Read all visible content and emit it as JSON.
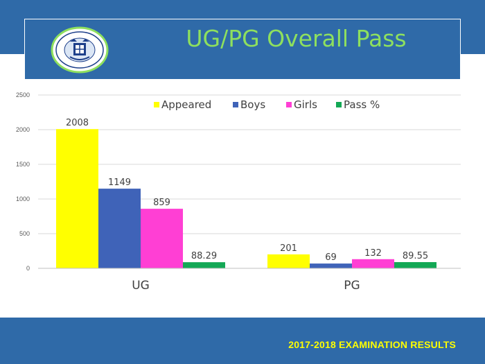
{
  "slide": {
    "title": "UG/PG Overall Pass",
    "footer": "2017-2018 EXAMINATION RESULTS",
    "logo_icon": "college-seal-emblem"
  },
  "colors": {
    "band": "#2f6aa8",
    "title": "#8ee05e",
    "footer": "#ffff00",
    "appeared": "#ffff00",
    "boys": "#3f63b8",
    "girls": "#ff3fd4",
    "pass": "#13a855"
  },
  "chart_data": {
    "type": "bar",
    "categories": [
      "UG",
      "PG"
    ],
    "series": [
      {
        "name": "Appeared",
        "values": [
          2008,
          201
        ],
        "labels": [
          "2008",
          "201"
        ]
      },
      {
        "name": "Boys",
        "values": [
          1149,
          69
        ],
        "labels": [
          "1149",
          "69"
        ]
      },
      {
        "name": "Girls",
        "values": [
          859,
          132
        ],
        "labels": [
          "859",
          "132"
        ]
      },
      {
        "name": "Pass %",
        "values": [
          88.29,
          89.55
        ],
        "labels": [
          "88.29",
          "89.55"
        ]
      }
    ],
    "yticks": [
      "0",
      "500",
      "1000",
      "1500",
      "2000",
      "2500"
    ],
    "ylim": [
      0,
      2500
    ],
    "grid": true,
    "legend": "top-center"
  }
}
